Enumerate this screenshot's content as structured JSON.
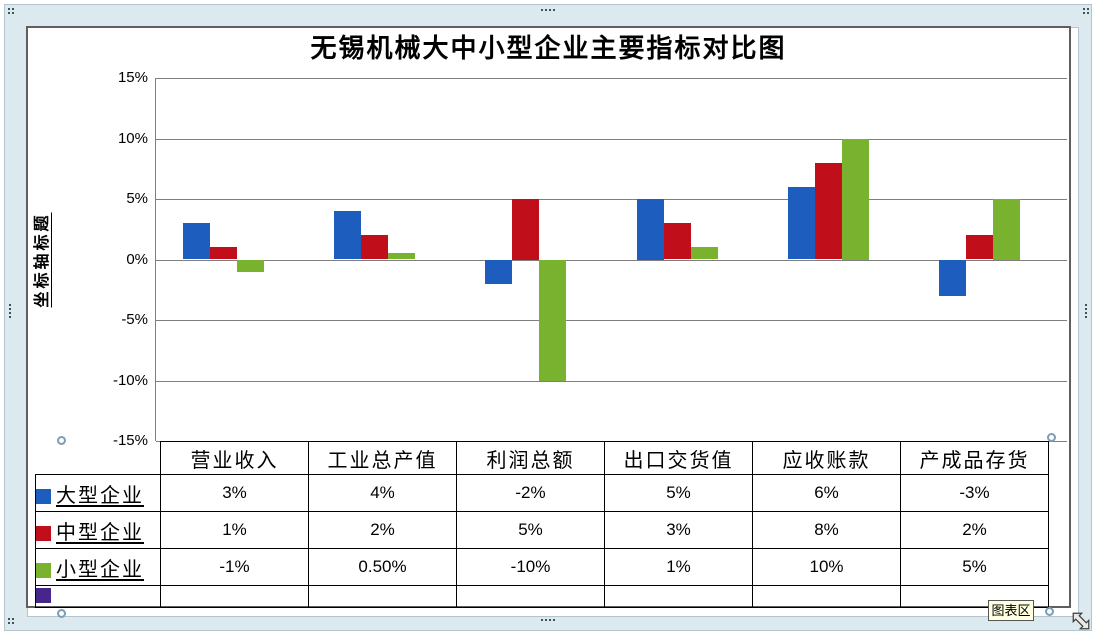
{
  "frame": {
    "tooltip": "图表区"
  },
  "chart_data": {
    "type": "bar",
    "title": "无锡机械大中小型企业主要指标对比图",
    "y_axis_title": "坐标轴标题",
    "xlabel": "",
    "ylabel": "坐标轴标题",
    "categories": [
      "营业收入",
      "工业总产值",
      "利润总额",
      "出口交货值",
      "应收账款",
      "产成品存货"
    ],
    "series": [
      {
        "name": "大型企业",
        "color": "#1D5DBE",
        "values": [
          3,
          4,
          -2,
          5,
          6,
          -3
        ],
        "display": [
          "3%",
          "4%",
          "-2%",
          "5%",
          "6%",
          "-3%"
        ]
      },
      {
        "name": "中型企业",
        "color": "#C00E1A",
        "values": [
          1,
          2,
          5,
          3,
          8,
          2
        ],
        "display": [
          "1%",
          "2%",
          "5%",
          "3%",
          "8%",
          "2%"
        ]
      },
      {
        "name": "小型企业",
        "color": "#79B22E",
        "values": [
          -1,
          0.5,
          -10,
          1,
          10,
          5
        ],
        "display": [
          "-1%",
          "0.50%",
          "-10%",
          "1%",
          "10%",
          "5%"
        ]
      },
      {
        "name": "",
        "color": "#45278B",
        "values": [],
        "display": [
          "",
          "",
          "",
          "",
          "",
          ""
        ]
      }
    ],
    "y_tick_labels": [
      "15%",
      "10%",
      "5%",
      "0%",
      "-5%",
      "-10%",
      "-15%"
    ],
    "y_tick_values": [
      15,
      10,
      5,
      0,
      -5,
      -10,
      -15
    ],
    "ylim": [
      -15,
      15
    ],
    "grid": true,
    "legend_position": "data-table-left",
    "colors": {
      "gridline": "#7f7f7f",
      "table_border": "#000000",
      "tooltip_bg": "#ffffe1",
      "selection_band": "#dce9ef"
    }
  }
}
